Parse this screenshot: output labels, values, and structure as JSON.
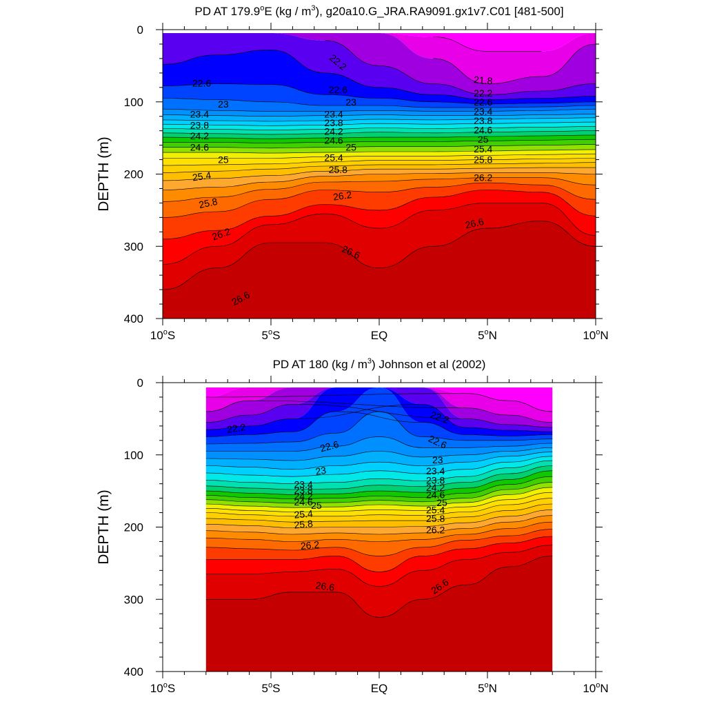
{
  "chart_data": [
    {
      "type": "heatmap",
      "title": "PD AT 179.9°E (kg / m³), g20a10.G_JRA.RA9091.gx1v7.C01 [481-500]",
      "title_parts": {
        "pre": "PD AT 179.9",
        "deg": "o",
        "mid": "E (kg / m",
        "sup": "3",
        "post": "), g20a10.G_JRA.RA9091.gx1v7.C01 [481-500]"
      },
      "ylabel": "DEPTH (m)",
      "xlim": [
        -10,
        10
      ],
      "ylim": [
        400,
        0
      ],
      "x_ticks": [
        {
          "value": -10,
          "text": "10",
          "sup": "o",
          "suffix": "S"
        },
        {
          "value": -5,
          "text": "5",
          "sup": "o",
          "suffix": "S"
        },
        {
          "value": 0,
          "text": "EQ",
          "sup": "",
          "suffix": ""
        },
        {
          "value": 5,
          "text": "5",
          "sup": "o",
          "suffix": "N"
        },
        {
          "value": 10,
          "text": "10",
          "sup": "o",
          "suffix": "N"
        }
      ],
      "y_ticks": [
        "0",
        "100",
        "200",
        "300",
        "400"
      ],
      "x": [
        -10,
        -7.5,
        -5,
        -2.5,
        0,
        2.5,
        5,
        7.5,
        10
      ],
      "data_x_range": [
        -10,
        10
      ],
      "levels": [
        21.8,
        22.0,
        22.2,
        22.4,
        22.6,
        22.8,
        23.0,
        23.2,
        23.4,
        23.6,
        23.8,
        24.0,
        24.2,
        24.4,
        24.6,
        24.8,
        25.0,
        25.2,
        25.4,
        25.6,
        25.8,
        26.0,
        26.2,
        26.4,
        26.6,
        26.8
      ],
      "isopycnal_depths": [
        [
          null,
          null,
          null,
          null,
          null,
          10,
          30,
          30,
          null
        ],
        [
          null,
          null,
          null,
          null,
          null,
          40,
          75,
          65,
          20
        ],
        [
          null,
          null,
          null,
          15,
          50,
          75,
          90,
          85,
          75
        ],
        [
          48,
          35,
          28,
          60,
          80,
          90,
          97,
          95,
          92
        ],
        [
          78,
          75,
          76,
          90,
          95,
          100,
          103,
          102,
          100
        ],
        [
          95,
          97,
          100,
          105,
          105,
          108,
          108,
          107,
          105
        ],
        [
          110,
          112,
          113,
          113,
          112,
          113,
          113,
          112,
          110
        ],
        [
          118,
          119,
          120,
          119,
          118,
          119,
          119,
          118,
          117
        ],
        [
          125,
          126,
          127,
          126,
          124,
          125,
          124,
          123,
          122
        ],
        [
          131,
          132,
          133,
          132,
          130,
          131,
          130,
          129,
          128
        ],
        [
          137,
          138,
          139,
          138,
          136,
          137,
          136,
          135,
          134
        ],
        [
          143,
          144,
          145,
          144,
          142,
          143,
          142,
          141,
          140
        ],
        [
          149,
          150,
          151,
          150,
          149,
          149,
          148,
          147,
          146
        ],
        [
          156,
          156,
          157,
          156,
          155,
          155,
          154,
          153,
          152
        ],
        [
          163,
          163,
          164,
          163,
          162,
          162,
          161,
          160,
          159
        ],
        [
          170,
          170,
          171,
          170,
          169,
          169,
          168,
          167,
          166
        ],
        [
          178,
          178,
          178,
          176,
          175,
          175,
          174,
          173,
          172
        ],
        [
          188,
          187,
          186,
          183,
          181,
          181,
          180,
          179,
          178
        ],
        [
          198,
          196,
          193,
          189,
          187,
          187,
          186,
          185,
          184
        ],
        [
          209,
          206,
          202,
          196,
          193,
          193,
          192,
          191,
          191
        ],
        [
          222,
          218,
          211,
          203,
          200,
          199,
          198,
          198,
          200
        ],
        [
          238,
          232,
          221,
          211,
          210,
          207,
          205,
          205,
          215
        ],
        [
          260,
          252,
          235,
          222,
          225,
          218,
          212,
          215,
          235
        ],
        [
          290,
          278,
          258,
          242,
          250,
          232,
          222,
          225,
          258
        ],
        [
          325,
          300,
          270,
          255,
          275,
          250,
          240,
          240,
          285
        ],
        [
          360,
          330,
          295,
          295,
          330,
          300,
          275,
          265,
          300
        ]
      ],
      "labels": [
        {
          "text": "22.2",
          "x": -1.9,
          "y": 45,
          "rot": 40
        },
        {
          "text": "21.8",
          "x": 4.8,
          "y": 70,
          "rot": 5
        },
        {
          "text": "22.2",
          "x": 4.8,
          "y": 88,
          "rot": 0
        },
        {
          "text": "22.6",
          "x": 4.8,
          "y": 100,
          "rot": 0
        },
        {
          "text": "23.4",
          "x": 4.8,
          "y": 113,
          "rot": 0
        },
        {
          "text": "23.8",
          "x": 4.8,
          "y": 126,
          "rot": 0
        },
        {
          "text": "24.6",
          "x": 4.8,
          "y": 139,
          "rot": 0
        },
        {
          "text": "25",
          "x": 4.8,
          "y": 152,
          "rot": 0
        },
        {
          "text": "25.4",
          "x": 4.8,
          "y": 165,
          "rot": 0
        },
        {
          "text": "25.8",
          "x": 4.8,
          "y": 180,
          "rot": 0
        },
        {
          "text": "26.2",
          "x": 4.8,
          "y": 205,
          "rot": 0
        },
        {
          "text": "26.6",
          "x": 4.4,
          "y": 268,
          "rot": -12
        },
        {
          "text": "22.6",
          "x": -8.2,
          "y": 74,
          "rot": 0
        },
        {
          "text": "23",
          "x": -7.2,
          "y": 103,
          "rot": 0
        },
        {
          "text": "23.4",
          "x": -8.3,
          "y": 117,
          "rot": 0
        },
        {
          "text": "23.8",
          "x": -8.3,
          "y": 132,
          "rot": 0
        },
        {
          "text": "24.2",
          "x": -8.3,
          "y": 147,
          "rot": 0
        },
        {
          "text": "24.6",
          "x": -8.3,
          "y": 163,
          "rot": 0
        },
        {
          "text": "25",
          "x": -7.2,
          "y": 180,
          "rot": 0
        },
        {
          "text": "25.4",
          "x": -8.2,
          "y": 203,
          "rot": -8
        },
        {
          "text": "25.8",
          "x": -7.9,
          "y": 240,
          "rot": -12
        },
        {
          "text": "26.2",
          "x": -7.3,
          "y": 283,
          "rot": -20
        },
        {
          "text": "26.6",
          "x": -6.4,
          "y": 372,
          "rot": -28
        },
        {
          "text": "22.6",
          "x": -1.9,
          "y": 83,
          "rot": 0
        },
        {
          "text": "23",
          "x": -1.3,
          "y": 100,
          "rot": 0
        },
        {
          "text": "23.4",
          "x": -2.1,
          "y": 117,
          "rot": 0
        },
        {
          "text": "23.8",
          "x": -2.1,
          "y": 129,
          "rot": 0
        },
        {
          "text": "24.2",
          "x": -2.1,
          "y": 141,
          "rot": 0
        },
        {
          "text": "24.6",
          "x": -2.1,
          "y": 153,
          "rot": 0
        },
        {
          "text": "25",
          "x": -1.3,
          "y": 163,
          "rot": 0
        },
        {
          "text": "25.4",
          "x": -2.1,
          "y": 177,
          "rot": 0
        },
        {
          "text": "25.8",
          "x": -1.9,
          "y": 194,
          "rot": 0
        },
        {
          "text": "26.2",
          "x": -1.7,
          "y": 230,
          "rot": -8
        },
        {
          "text": "26.6",
          "x": -1.3,
          "y": 308,
          "rot": 25
        }
      ]
    },
    {
      "type": "heatmap",
      "title": "PD AT 180 (kg / m³) Johnson et al (2002)",
      "title_parts": {
        "pre": "PD AT 180 (kg / m",
        "deg": "",
        "mid": "",
        "sup": "3",
        "post": ") Johnson et al (2002)"
      },
      "ylabel": "DEPTH (m)",
      "xlim": [
        -10,
        10
      ],
      "ylim": [
        400,
        0
      ],
      "x_ticks": [
        {
          "value": -10,
          "text": "10",
          "sup": "o",
          "suffix": "S"
        },
        {
          "value": -5,
          "text": "5",
          "sup": "o",
          "suffix": "S"
        },
        {
          "value": 0,
          "text": "EQ",
          "sup": "",
          "suffix": ""
        },
        {
          "value": 5,
          "text": "5",
          "sup": "o",
          "suffix": "N"
        },
        {
          "value": 10,
          "text": "10",
          "sup": "o",
          "suffix": "N"
        }
      ],
      "y_ticks": [
        "0",
        "100",
        "200",
        "300",
        "400"
      ],
      "x": [
        -8,
        -6,
        -4,
        -2,
        0,
        2,
        4,
        6,
        8
      ],
      "data_x_range": [
        -8,
        8
      ],
      "levels": [
        21.8,
        22.0,
        22.2,
        22.4,
        22.6,
        22.8,
        23.0,
        23.2,
        23.4,
        23.6,
        23.8,
        24.0,
        24.2,
        24.4,
        24.6,
        24.8,
        25.0,
        25.2,
        25.4,
        25.6,
        25.8,
        26.0,
        26.2,
        26.4,
        26.6,
        26.8
      ],
      "isopycnal_depths": [
        [
          20,
          null,
          null,
          null,
          null,
          null,
          15,
          25,
          40
        ],
        [
          40,
          25,
          null,
          null,
          null,
          null,
          35,
          45,
          55
        ],
        [
          55,
          45,
          30,
          null,
          null,
          null,
          50,
          58,
          62
        ],
        [
          65,
          60,
          50,
          null,
          null,
          30,
          62,
          66,
          68
        ],
        [
          75,
          72,
          68,
          40,
          null,
          55,
          72,
          74,
          72
        ],
        [
          85,
          84,
          82,
          70,
          40,
          75,
          80,
          80,
          78
        ],
        [
          95,
          95,
          95,
          88,
          75,
          90,
          90,
          88,
          84
        ],
        [
          105,
          106,
          108,
          102,
          95,
          103,
          100,
          95,
          90
        ],
        [
          115,
          117,
          120,
          115,
          110,
          115,
          110,
          102,
          96
        ],
        [
          125,
          128,
          130,
          127,
          122,
          126,
          120,
          110,
          102
        ],
        [
          135,
          138,
          140,
          138,
          133,
          136,
          130,
          118,
          108
        ],
        [
          143,
          146,
          148,
          147,
          142,
          144,
          138,
          126,
          115
        ],
        [
          150,
          153,
          155,
          154,
          150,
          152,
          146,
          134,
          122
        ],
        [
          156,
          159,
          161,
          160,
          157,
          159,
          153,
          141,
          130
        ],
        [
          162,
          165,
          167,
          166,
          163,
          165,
          160,
          148,
          138
        ],
        [
          168,
          171,
          173,
          172,
          169,
          171,
          166,
          155,
          145
        ],
        [
          174,
          177,
          179,
          178,
          176,
          177,
          172,
          162,
          152
        ],
        [
          180,
          183,
          185,
          185,
          183,
          184,
          179,
          169,
          160
        ],
        [
          188,
          190,
          193,
          192,
          191,
          191,
          186,
          177,
          168
        ],
        [
          196,
          198,
          201,
          200,
          200,
          199,
          194,
          185,
          176
        ],
        [
          205,
          207,
          210,
          208,
          210,
          208,
          202,
          193,
          184
        ],
        [
          215,
          217,
          220,
          217,
          220,
          217,
          210,
          202,
          193
        ],
        [
          228,
          230,
          232,
          228,
          240,
          228,
          218,
          212,
          203
        ],
        [
          245,
          245,
          245,
          240,
          262,
          240,
          230,
          222,
          213
        ],
        [
          265,
          265,
          262,
          258,
          282,
          260,
          245,
          235,
          225
        ],
        [
          300,
          300,
          290,
          290,
          325,
          300,
          280,
          255,
          240
        ]
      ],
      "labels": [
        {
          "text": "22.2",
          "x": 2.8,
          "y": 48,
          "rot": 20
        },
        {
          "text": "22.6",
          "x": 2.7,
          "y": 82,
          "rot": 25
        },
        {
          "text": "23",
          "x": 2.7,
          "y": 107,
          "rot": 0
        },
        {
          "text": "23.4",
          "x": 2.6,
          "y": 122,
          "rot": 0
        },
        {
          "text": "23.8",
          "x": 2.6,
          "y": 135,
          "rot": 0
        },
        {
          "text": "24.2",
          "x": 2.6,
          "y": 145,
          "rot": 0
        },
        {
          "text": "24.6",
          "x": 2.6,
          "y": 155,
          "rot": 0
        },
        {
          "text": "25",
          "x": 2.9,
          "y": 166,
          "rot": 0
        },
        {
          "text": "25.4",
          "x": 2.6,
          "y": 176,
          "rot": 0
        },
        {
          "text": "25.8",
          "x": 2.6,
          "y": 188,
          "rot": 0
        },
        {
          "text": "26.2",
          "x": 2.6,
          "y": 204,
          "rot": 0
        },
        {
          "text": "26.6",
          "x": 2.8,
          "y": 282,
          "rot": -35
        },
        {
          "text": "22.2",
          "x": -6.6,
          "y": 63,
          "rot": -8
        },
        {
          "text": "22.6",
          "x": -2.3,
          "y": 88,
          "rot": -15
        },
        {
          "text": "23",
          "x": -2.7,
          "y": 122,
          "rot": -8
        },
        {
          "text": "23.4",
          "x": -3.5,
          "y": 141,
          "rot": 0
        },
        {
          "text": "23.8",
          "x": -3.5,
          "y": 149,
          "rot": 0
        },
        {
          "text": "24.2",
          "x": -3.5,
          "y": 157,
          "rot": 0
        },
        {
          "text": "24.6",
          "x": -3.5,
          "y": 165,
          "rot": 0
        },
        {
          "text": "25",
          "x": -2.9,
          "y": 170,
          "rot": 0
        },
        {
          "text": "25.4",
          "x": -3.5,
          "y": 182,
          "rot": -5
        },
        {
          "text": "25.8",
          "x": -3.5,
          "y": 196,
          "rot": -5
        },
        {
          "text": "26.2",
          "x": -3.2,
          "y": 225,
          "rot": -5
        },
        {
          "text": "26.6",
          "x": -2.5,
          "y": 282,
          "rot": 8
        }
      ]
    }
  ],
  "colormap": [
    "#ff00ff",
    "#e800e8",
    "#a000e0",
    "#5a00f0",
    "#0000ff",
    "#0044ff",
    "#0070ff",
    "#0090ff",
    "#00b0ff",
    "#00d0ff",
    "#00e8e8",
    "#00e0b0",
    "#00d070",
    "#10c800",
    "#40d000",
    "#90e000",
    "#f0f000",
    "#ffe000",
    "#ffd000",
    "#ffbf00",
    "#ffa830",
    "#ff8c00",
    "#ff6a00",
    "#ff3c00",
    "#ff0000",
    "#e00000",
    "#c40000"
  ]
}
